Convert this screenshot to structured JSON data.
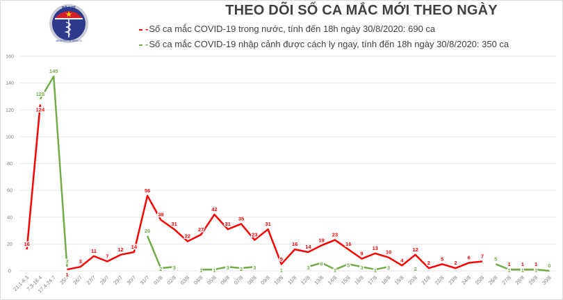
{
  "header": {
    "logo": {
      "top_text": "BỘ Y TẾ",
      "bottom_text": "MINISTRY OF HEALTH"
    },
    "title": "THEO DÕI SỐ CA MẮC MỚI THEO NGÀY",
    "legend": [
      {
        "marker": "-",
        "text": "Số ca mắc COVID-19 trong nước, tính đến 18h ngày 30/8/2020: 690 ca",
        "color": "#ff0000"
      },
      {
        "marker": "-",
        "text": "Số ca mắc COVID-19 nhập cảnh được cách ly ngay, tính đến 18h ngày 30/8/2020: 350 ca",
        "color": "#70ad47"
      }
    ]
  },
  "chart_data": {
    "type": "line",
    "title": "THEO DÕI SỐ CA MẮC MỚI THEO NGÀY",
    "xlabel": "",
    "ylabel": "",
    "ylim": [
      0,
      160
    ],
    "yticks": [
      0,
      20,
      40,
      60,
      80,
      100,
      120,
      140,
      160
    ],
    "grid": true,
    "legend_position": "top",
    "categories": [
      "21.1-6.3",
      "7.3-16.4",
      "17.4-24.7",
      "25/7",
      "26/7",
      "27/7",
      "28/7",
      "29/7",
      "30/7",
      "31/7",
      "01/8",
      "02/8",
      "03/8",
      "04/8",
      "05/8",
      "06/8",
      "07/8",
      "08/8",
      "09/8",
      "10/8",
      "11/8",
      "12/8",
      "13/8",
      "14/8",
      "15/8",
      "16/8",
      "17/8",
      "18/8",
      "19/8",
      "20/8",
      "21/8",
      "22/8",
      "23/8",
      "24/8",
      "25/8",
      "26/8",
      "27/8",
      "28/8",
      "29/8",
      "30/8"
    ],
    "series": [
      {
        "name": "Số ca mắc COVID-19 trong nước, tính đến 18h ngày 30/8/2020: 690 ca",
        "color": "#ff0000",
        "values": [
          16,
          124,
          null,
          1,
          3,
          11,
          7,
          12,
          14,
          56,
          38,
          31,
          22,
          27,
          42,
          31,
          35,
          23,
          31,
          5,
          16,
          14,
          19,
          23,
          16,
          9,
          13,
          10,
          4,
          12,
          2,
          5,
          2,
          6,
          7,
          null,
          1,
          1,
          1,
          null
        ]
      },
      {
        "name": "Số ca mắc COVID-19 nhập cảnh được cách ly ngay, tính đến 18h ngày 30/8/2020: 350 ca",
        "color": "#70ad47",
        "values": [
          null,
          128,
          145,
          3,
          null,
          null,
          null,
          null,
          null,
          26,
          2,
          3,
          null,
          1,
          1,
          3,
          2,
          3,
          null,
          1,
          null,
          3,
          6,
          1,
          5,
          3,
          1,
          3,
          null,
          2,
          null,
          null,
          null,
          null,
          null,
          5,
          1,
          1,
          1,
          0
        ]
      }
    ]
  }
}
